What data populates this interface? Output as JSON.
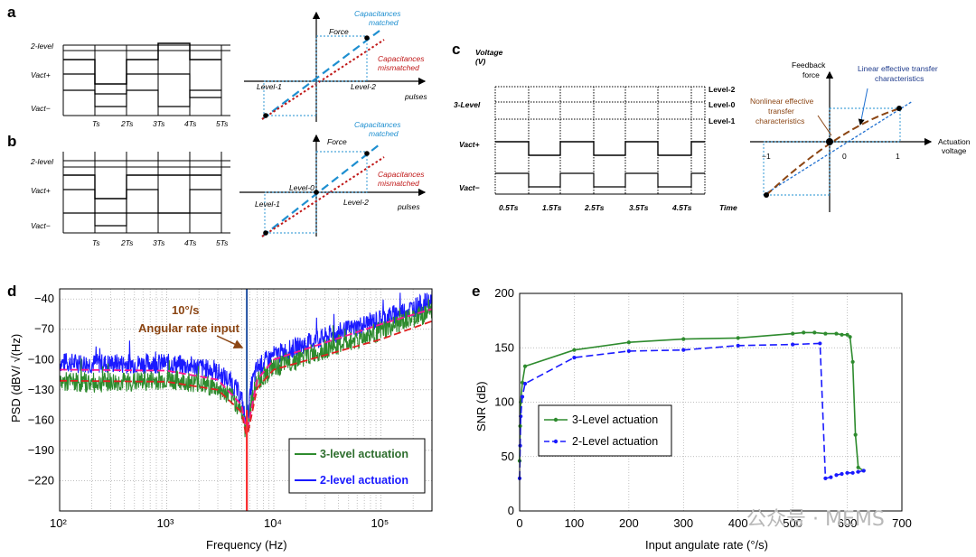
{
  "panels": {
    "a": {
      "label": "a",
      "y_labels": [
        "2-level",
        "Vact+",
        "Vact−"
      ],
      "x_ticks": [
        "Ts",
        "2Ts",
        "3Ts",
        "4Ts",
        "5Ts"
      ],
      "plot_labels": {
        "force": "Force",
        "pulses": "pulses",
        "level1": "Level-1",
        "level2": "Level-2",
        "matched": [
          "Capacitances",
          "matched"
        ],
        "mismatched": [
          "Capacitances",
          "mismatched"
        ]
      }
    },
    "b": {
      "label": "b",
      "y_labels": [
        "2-level",
        "Vact+",
        "Vact−"
      ],
      "x_ticks": [
        "Ts",
        "2Ts",
        "3Ts",
        "4Ts",
        "5Ts"
      ],
      "plot_labels": {
        "force": "Force",
        "pulses": "pulses",
        "level1": "Level-1",
        "level0": "Level-0",
        "level2": "Level-2",
        "matched": [
          "Capacitances",
          "matched"
        ],
        "mismatched": [
          "Capacitances",
          "mismatched"
        ]
      }
    },
    "c": {
      "label": "c",
      "y_title": [
        "Voltage",
        "(V)"
      ],
      "y_labels": [
        "3-Level",
        "Vact+",
        "Vact−"
      ],
      "level_labels": [
        "Level-2",
        "Level-0",
        "Level-1"
      ],
      "x_ticks": [
        "0.5Ts",
        "1.5Ts",
        "2.5Ts",
        "3.5Ts",
        "4.5Ts"
      ],
      "x_title": "Time",
      "transfer": {
        "y_title": [
          "Feedback",
          "force"
        ],
        "x_title": [
          "Actuation",
          "voltage"
        ],
        "linear": [
          "Linear effective transfer",
          "characteristics"
        ],
        "nonlinear": [
          "Nonlinear effective",
          "transfer",
          "characteristics"
        ],
        "ticks": [
          "−1",
          "0",
          "1"
        ]
      }
    },
    "d": {
      "label": "d"
    },
    "e": {
      "label": "e"
    }
  },
  "chart_data": [
    {
      "panel": "d",
      "type": "line",
      "xlabel": "Frequency (Hz)",
      "ylabel": "PSD (dBV/ √(Hz)",
      "x_scale": "log",
      "xlim": [
        100,
        300000
      ],
      "ylim": [
        -250,
        -30
      ],
      "x_ticks": [
        100,
        1000,
        10000,
        100000
      ],
      "x_tick_labels": [
        "10²",
        "10³",
        "10⁴",
        "10⁵"
      ],
      "y_ticks": [
        -40,
        -70,
        -100,
        -130,
        -160,
        -190,
        -220
      ],
      "y_tick_labels": [
        "−40",
        "−70",
        "−100",
        "−130",
        "−160",
        "−190",
        "−220"
      ],
      "grid": true,
      "annotation": [
        "10°/s",
        "Angular rate input"
      ],
      "legend_position": "bottom-right",
      "series": [
        {
          "name": "3-level actuation",
          "color": "#2e8b2e",
          "x": [
            100,
            200,
            500,
            1000,
            2000,
            3000,
            4000,
            5000,
            5500,
            5800,
            6200,
            7000,
            10000,
            30000,
            100000,
            300000
          ],
          "y": [
            -122,
            -123,
            -122,
            -120,
            -123,
            -129,
            -137,
            -150,
            -175,
            -160,
            -140,
            -122,
            -108,
            -90,
            -72,
            -52
          ]
        },
        {
          "name": "2-level actuation",
          "color": "#1a1aff",
          "x": [
            100,
            200,
            500,
            1000,
            2000,
            3000,
            4000,
            5000,
            5500,
            5800,
            6200,
            7000,
            10000,
            30000,
            100000,
            300000
          ],
          "y": [
            -103,
            -104,
            -104,
            -104,
            -107,
            -113,
            -122,
            -138,
            -165,
            -150,
            -125,
            -108,
            -96,
            -78,
            -60,
            -42
          ]
        }
      ],
      "fits": [
        {
          "color": "#ff1493",
          "x": [
            100,
            1000,
            3000,
            5000,
            5600,
            7000,
            10000,
            100000,
            300000
          ],
          "y": [
            -110,
            -111,
            -120,
            -145,
            -172,
            -120,
            -100,
            -65,
            -50
          ]
        },
        {
          "color": "#e02020",
          "x": [
            100,
            1000,
            3000,
            5000,
            5600,
            7000,
            10000,
            100000,
            300000
          ],
          "y": [
            -121,
            -122,
            -130,
            -152,
            -178,
            -128,
            -110,
            -80,
            -62
          ]
        }
      ]
    },
    {
      "panel": "e",
      "type": "line",
      "xlabel": "Input angulate rate (°/s)",
      "ylabel": "SNR (dB)",
      "xlim": [
        0,
        700
      ],
      "ylim": [
        0,
        200
      ],
      "x_ticks": [
        0,
        100,
        200,
        300,
        400,
        500,
        600,
        700
      ],
      "y_ticks": [
        0,
        50,
        100,
        150,
        200
      ],
      "grid": true,
      "legend_position": "left",
      "series": [
        {
          "name": "3-Level actuation",
          "color": "#2e8b2e",
          "dash": false,
          "x": [
            0,
            1,
            2,
            5,
            10,
            100,
            200,
            300,
            400,
            500,
            520,
            540,
            560,
            580,
            590,
            600,
            605,
            610,
            615,
            620,
            630
          ],
          "y": [
            46,
            78,
            100,
            118,
            133,
            148,
            155,
            158,
            159,
            163,
            164,
            164,
            163,
            163,
            162,
            162,
            160,
            137,
            70,
            40,
            37
          ]
        },
        {
          "name": "2-Level actuation",
          "color": "#1a1aff",
          "dash": true,
          "x": [
            0,
            1,
            2,
            5,
            10,
            100,
            200,
            300,
            400,
            500,
            550,
            560,
            570,
            580,
            590,
            600,
            610,
            620,
            630
          ],
          "y": [
            30,
            60,
            87,
            105,
            117,
            141,
            147,
            148,
            152,
            153,
            154,
            30,
            31,
            33,
            34,
            35,
            35,
            36,
            37
          ]
        }
      ]
    }
  ],
  "watermark": "公众号 · MEMS"
}
